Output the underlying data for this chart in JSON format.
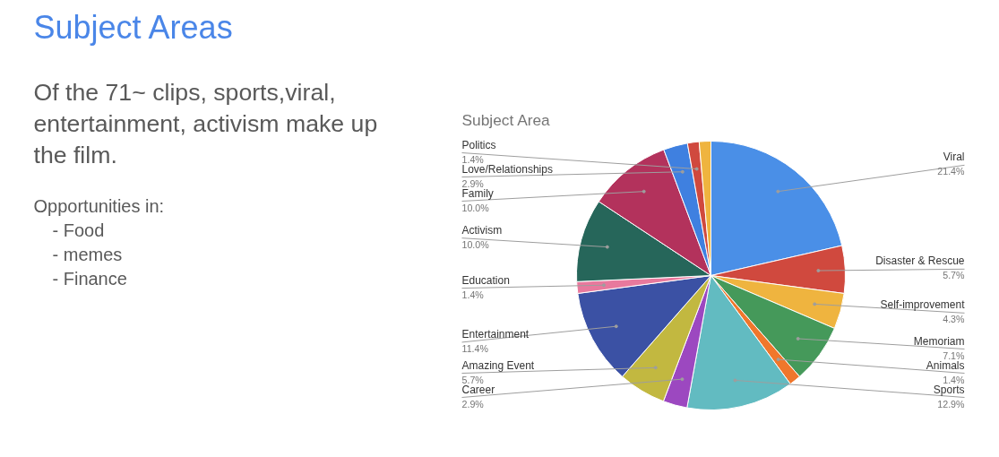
{
  "chart_data": {
    "type": "pie",
    "title": "Subject Areas",
    "subtitle": "Subject Area",
    "annotations": [
      "Of the 71~ clips, sports,viral, entertainment, activism make up the film.",
      "Opportunities in:",
      "-   Food",
      "-   memes",
      "-   Finance"
    ],
    "categories": [
      "Viral",
      "Disaster & Rescue",
      "Self-improvement",
      "Memoriam",
      "Animals",
      "Sports",
      "Career",
      "Amazing Event",
      "Entertainment",
      "Education",
      "Activism",
      "Family",
      "Love/Relationships",
      "Politics",
      null
    ],
    "values": [
      21.4,
      5.7,
      4.3,
      7.1,
      1.4,
      12.9,
      2.9,
      5.7,
      11.4,
      1.4,
      10.0,
      10.0,
      2.9,
      1.4,
      1.4
    ],
    "colors": [
      "#4a8fe7",
      "#d0493e",
      "#efb43f",
      "#45995a",
      "#f0772c",
      "#62bbc1",
      "#9c48c0",
      "#c2b840",
      "#3b51a4",
      "#e8799d",
      "#26665a",
      "#b3325c",
      "#3f80e0",
      "#d0493e",
      "#efb43f"
    ],
    "value_labels": [
      "21.4%",
      "5.7%",
      "4.3%",
      "7.1%",
      "1.4%",
      "12.9%",
      "2.9%",
      "5.7%",
      "11.4%",
      "1.4%",
      "10.0%",
      "10.0%",
      "2.9%",
      "1.4%",
      null
    ]
  }
}
